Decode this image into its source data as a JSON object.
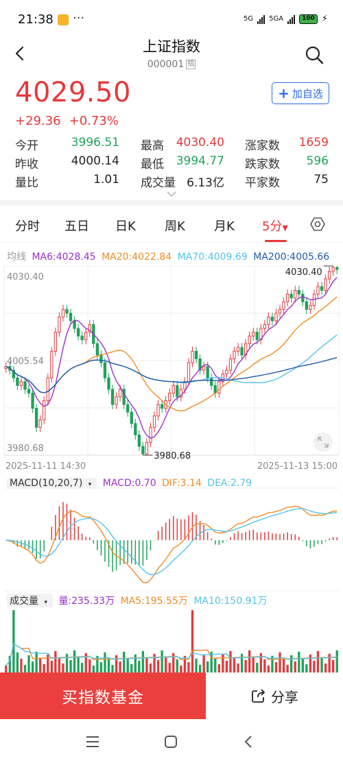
{
  "status_bar": {
    "time": "21:38",
    "dots": "···",
    "net1": "5G",
    "net2": "5GA",
    "battery": "100"
  },
  "header": {
    "title": "上证指数",
    "code": "000001",
    "index_tag": "指"
  },
  "quote": {
    "price": "4029.50",
    "change": "+29.36",
    "change_pct": "+0.73%",
    "add_watch_label": "加自选"
  },
  "stats": [
    {
      "label": "今开",
      "value": "3996.51",
      "color": "green"
    },
    {
      "label": "最高",
      "value": "4030.40",
      "color": "red"
    },
    {
      "label": "涨家数",
      "value": "1659",
      "color": "red"
    },
    {
      "label": "昨收",
      "value": "4000.14",
      "color": "dark"
    },
    {
      "label": "最低",
      "value": "3994.77",
      "color": "green"
    },
    {
      "label": "跌家数",
      "value": "596",
      "color": "green"
    },
    {
      "label": "量比",
      "value": "1.01",
      "color": "dark"
    },
    {
      "label": "成交量",
      "value": "6.13亿",
      "color": "dark"
    },
    {
      "label": "平家数",
      "value": "75",
      "color": "dark"
    }
  ],
  "tabs": [
    "分时",
    "五日",
    "日K",
    "周K",
    "月K",
    "5分"
  ],
  "active_tab": "5分",
  "colors": {
    "up": "#e5383b",
    "down": "#1ea25a",
    "ma6": "#9b30c8",
    "ma20": "#f08a24",
    "ma70": "#55c2e8",
    "ma200": "#1f5aa8",
    "accent": "#2b6be8"
  },
  "legend_ma": {
    "label": "均线",
    "ma6": "MA6:4028.45",
    "ma20": "MA20:4022.84",
    "ma70": "MA70:4009.69",
    "ma200": "MA200:4005.66"
  },
  "legend_macd": {
    "label": "MACD(10,20,7)",
    "macd": "MACD:0.70",
    "dif": "DIF:3.14",
    "dea": "DEA:2.79"
  },
  "legend_vol": {
    "label": "成交量",
    "vol": "量:235.33万",
    "ma5": "MA5:195.55万",
    "ma10": "MA10:150.91万"
  },
  "chart_data": {
    "type": "candlestick",
    "interval": "5分",
    "y_top_label": "4030.40",
    "y_bottom_label": "3980.68",
    "y_mid_label": "4005.54",
    "ylim": [
      3980.68,
      4030.4
    ],
    "high_marker": "4030.40",
    "low_marker": "3980.68",
    "start_date": "2025-11-11 14:30",
    "end_date": "2025-11-13 15:00",
    "closes": [
      4004,
      4003,
      4001,
      3999,
      4000,
      3998,
      3997,
      3993,
      3988,
      3990,
      3995,
      4001,
      4008,
      4013,
      4017,
      4019,
      4018,
      4016,
      4014,
      4012,
      4011,
      4013,
      4015,
      4010,
      4007,
      4005,
      4001,
      3998,
      3994,
      3996,
      3998,
      3994,
      3992,
      3989,
      3986,
      3983,
      3981,
      3984,
      3988,
      3991,
      3994,
      3993,
      3995,
      3997,
      3999,
      3996,
      3998,
      4000,
      4005,
      4008,
      4006,
      4003,
      4004,
      4001,
      3999,
      3997,
      4000,
      4002,
      4003,
      4006,
      4008,
      4009,
      4007,
      4010,
      4012,
      4013,
      4011,
      4014,
      4015,
      4017,
      4016,
      4018,
      4019,
      4021,
      4023,
      4022,
      4024,
      4023,
      4021,
      4019,
      4020,
      4023,
      4025,
      4024,
      4027,
      4029,
      4030,
      4029.5
    ]
  },
  "bottom_bar": {
    "buy_label": "买指数基金",
    "share_label": "分享"
  }
}
